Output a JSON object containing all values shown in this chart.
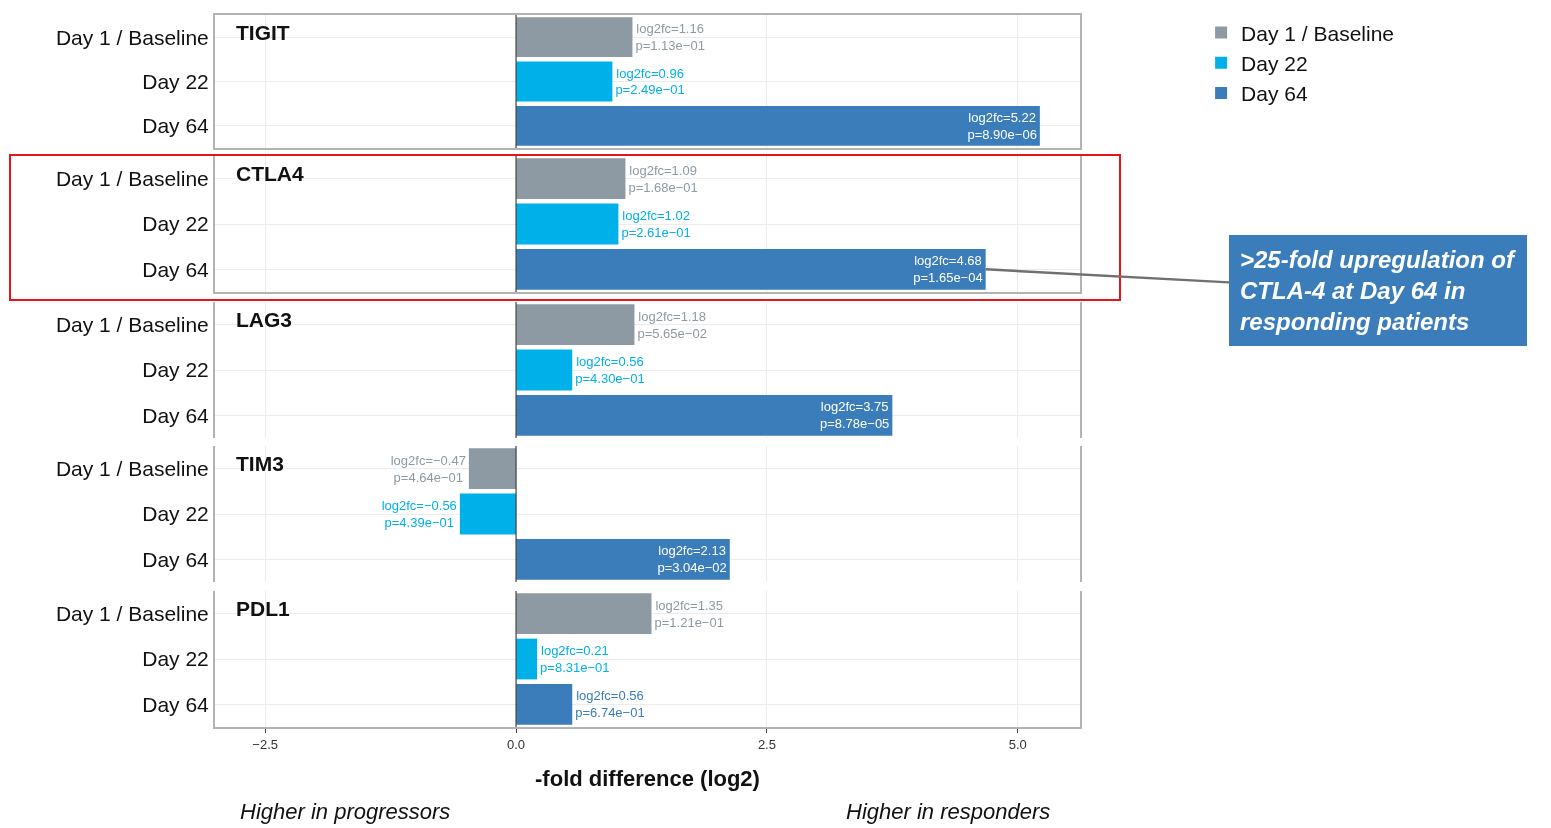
{
  "chart_data": [
    {
      "type": "bar",
      "orientation": "horizontal",
      "title": "TIGIT",
      "categories": [
        "Day 1 / Baseline",
        "Day 22",
        "Day 64"
      ],
      "series": [
        {
          "name": "Day 1 / Baseline",
          "color": "#8e9aa3",
          "values": [
            1.16,
            null,
            null
          ],
          "value_labels": [
            "log2fc=1.16\np=1.13e−01",
            null,
            null
          ]
        },
        {
          "name": "Day 22",
          "color": "#00b0e8",
          "values": [
            null,
            0.96,
            null
          ],
          "value_labels": [
            null,
            "log2fc=0.96\np=2.49e−01",
            null
          ]
        },
        {
          "name": "Day 64",
          "color": "#3a7dba",
          "values": [
            null,
            null,
            5.22
          ],
          "value_labels": [
            null,
            null,
            "log2fc=5.22\np=8.90e−06"
          ]
        }
      ],
      "xlim": [
        -3,
        5.62
      ],
      "grid": true,
      "legend": "top right",
      "tick_labels": "y",
      "ref_lines": [
        {
          "axis": "x",
          "value": 0,
          "color": "#444444"
        }
      ]
    },
    {
      "type": "bar",
      "orientation": "horizontal",
      "title": "CTLA4",
      "categories": [
        "Day 1 / Baseline",
        "Day 22",
        "Day 64"
      ],
      "values": [
        1.09,
        1.02,
        4.68
      ],
      "colors": [
        "#8e9aa3",
        "#00b0e8",
        "#3a7dba"
      ],
      "value_labels": [
        "log2fc=1.09\np=1.68e−01",
        "log2fc=1.02\np=2.61e−01",
        "log2fc=4.68\np=1.65e−04"
      ],
      "xlim": [
        -3,
        5.62
      ],
      "grid": true,
      "tick_labels": "y",
      "ref_lines": [
        {
          "axis": "x",
          "value": 0,
          "color": "#444444"
        }
      ],
      "annotations": [
        {
          "text": ">25-fold upregulation of CTLA-4 at Day 64 in responding patients",
          "x": 4.68,
          "y": "Day 64"
        }
      ]
    },
    {
      "type": "bar",
      "orientation": "horizontal",
      "title": "LAG3",
      "categories": [
        "Day 1 / Baseline",
        "Day 22",
        "Day 64"
      ],
      "values": [
        1.18,
        0.56,
        3.75
      ],
      "colors": [
        "#8e9aa3",
        "#00b0e8",
        "#3a7dba"
      ],
      "value_labels": [
        "log2fc=1.18\np=5.65e−02",
        "log2fc=0.56\np=4.30e−01",
        "log2fc=3.75\np=8.78e−05"
      ],
      "xlim": [
        -3,
        5.62
      ],
      "grid": true,
      "tick_labels": "y",
      "ref_lines": [
        {
          "axis": "x",
          "value": 0,
          "color": "#444444"
        }
      ]
    },
    {
      "type": "bar",
      "orientation": "horizontal",
      "title": "TIM3",
      "categories": [
        "Day 1 / Baseline",
        "Day 22",
        "Day 64"
      ],
      "values": [
        -0.47,
        -0.56,
        2.13
      ],
      "colors": [
        "#8e9aa3",
        "#00b0e8",
        "#3a7dba"
      ],
      "value_labels": [
        "log2fc=−0.47\np=4.64e−01",
        "log2fc=−0.56\np=4.39e−01",
        "log2fc=2.13\np=3.04e−02"
      ],
      "xlim": [
        -3,
        5.62
      ],
      "grid": true,
      "tick_labels": "y",
      "ref_lines": [
        {
          "axis": "x",
          "value": 0,
          "color": "#444444"
        }
      ]
    },
    {
      "type": "bar",
      "orientation": "horizontal",
      "title": "PDL1",
      "categories": [
        "Day 1 / Baseline",
        "Day 22",
        "Day 64"
      ],
      "values": [
        1.35,
        0.21,
        0.56
      ],
      "colors": [
        "#8e9aa3",
        "#00b0e8",
        "#3a7dba"
      ],
      "value_labels": [
        "log2fc=1.35\np=1.21e−01",
        "log2fc=0.21\np=8.31e−01",
        "log2fc=0.56\np=6.74e−01"
      ],
      "xlim": [
        -3,
        5.62
      ],
      "xticks": [
        {
          "value": -2.5,
          "label": "−2.5"
        },
        {
          "value": 0,
          "label": "0.0"
        },
        2.5,
        {
          "value": 5,
          "label": "5.0"
        }
      ],
      "grid": true,
      "ref_lines": [
        {
          "axis": "x",
          "value": 0,
          "color": "#444444"
        }
      ],
      "xlabel": "-fold difference (log2)",
      "annotations": [
        "Higher in progressors",
        "Higher in responders"
      ]
    }
  ]
}
